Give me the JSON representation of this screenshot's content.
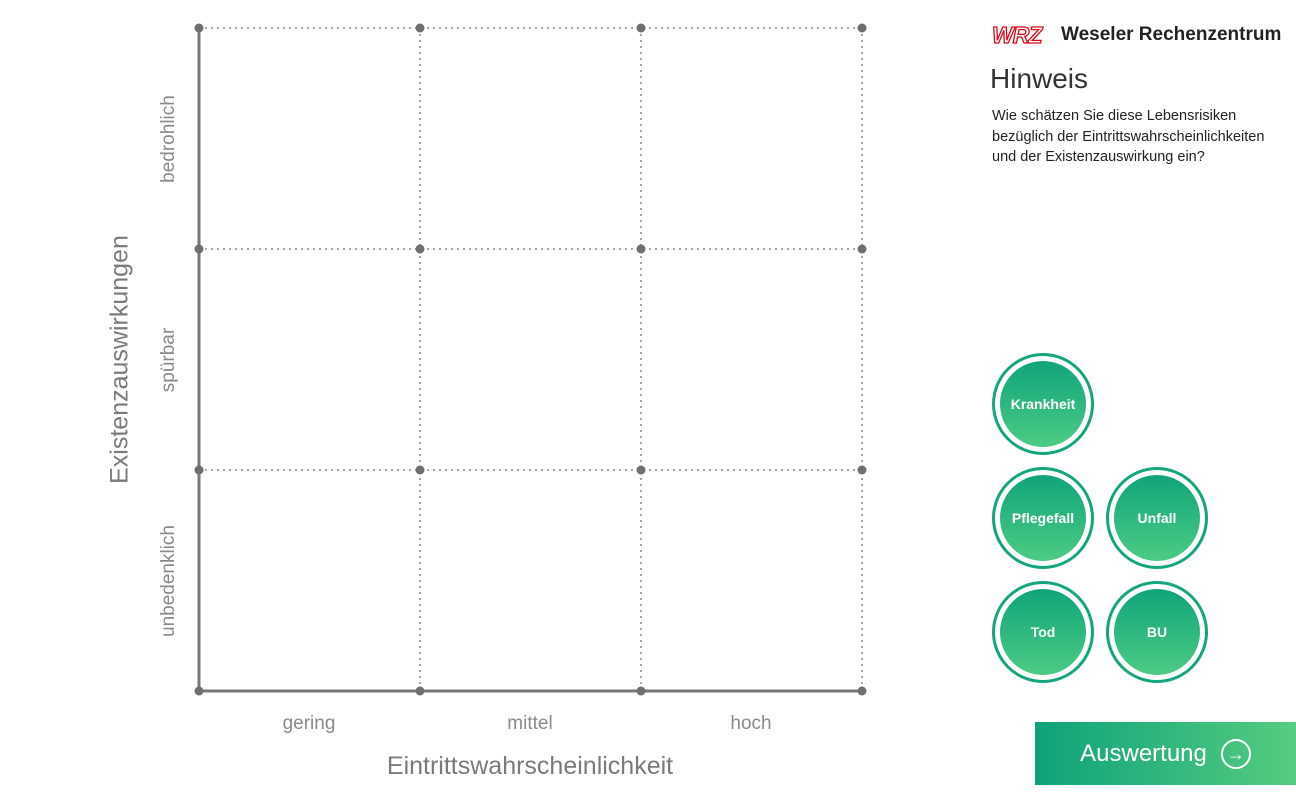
{
  "chart_data": {
    "type": "matrix",
    "x_title": "Eintrittswahrscheinlichkeit",
    "y_title": "Existenzauswirkungen",
    "x_categories": [
      "gering",
      "mittel",
      "hoch"
    ],
    "y_categories": [
      "unbedenklich",
      "spürbar",
      "bedrohlich"
    ],
    "grid": true
  },
  "sidebar": {
    "logo_mark": "WRZ",
    "logo_text": "Weseler Rechenzentrum",
    "title": "Hinweis",
    "hint": "Wie schätzen Sie diese Lebensrisiken bezüglich der Eintrittswahrscheinlichkeiten und der Existenzauswirkung ein?",
    "risks": [
      "Krankheit",
      "Pflegefall",
      "Unfall",
      "Tod",
      "BU"
    ],
    "evaluate_label": "Auswertung",
    "accent": "#13a57c",
    "logo_color": "#e30613"
  }
}
